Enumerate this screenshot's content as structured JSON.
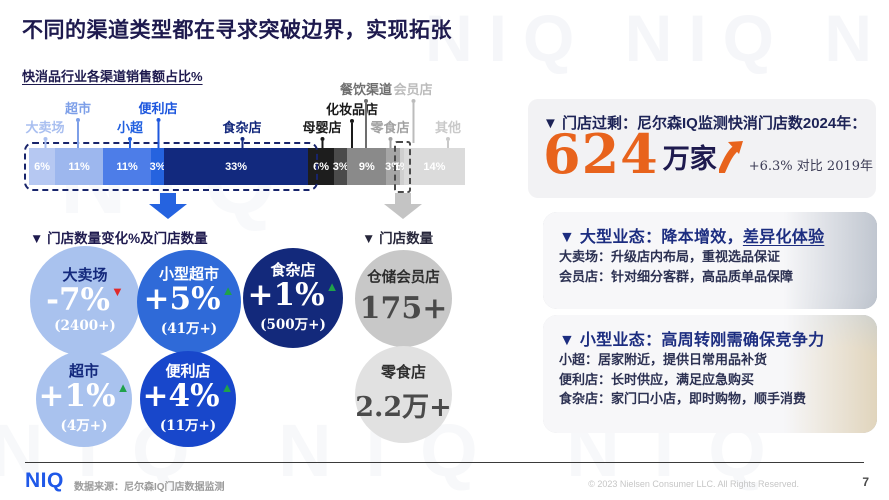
{
  "header": {
    "title": "不同的渠道类型都在寻求突破边界，实现拓张",
    "subtitle": "快消品行业各渠道销售额占比%"
  },
  "watermark": {
    "top": "NIQ NIQ NIQ",
    "mid": "NIQ",
    "bottom": "NIQ NIQ NIQ"
  },
  "chart_data": [
    {
      "type": "bar",
      "subtype": "horizontal-stacked",
      "title": "快消品行业各渠道销售额占比%",
      "unit": "%",
      "categories": [
        "大卖场",
        "超市",
        "小超",
        "便利店",
        "食杂店",
        "母婴店",
        "化妆品店",
        "餐饮渠道",
        "零食店",
        "会员店",
        "其他"
      ],
      "values": [
        6,
        11,
        11,
        3,
        33,
        6,
        3,
        9,
        3,
        1,
        14
      ],
      "colors": [
        "#b6c8f2",
        "#9db7ee",
        "#4d7de8",
        "#2563df",
        "#12297e",
        "#1d1d1d",
        "#4b4b4b",
        "#8a8a8a",
        "#a6a6a6",
        "#cfcfcf",
        "#dbdbdb"
      ],
      "label_colors": [
        "#a9bff0",
        "#7d9fe8",
        "#2261e0",
        "#1e57de",
        "#13287c",
        "#1a1a1a",
        "#1a1a1a",
        "#6e6e6e",
        "#a2a2a2",
        "#bcbcbc",
        "#c9c9c9"
      ],
      "highlight_group_outline": "大卖场至食杂店蓝色虚线框",
      "highlight_segment_outline": "会员店虚线框",
      "legend_position": "above-bar",
      "grid": false
    },
    {
      "type": "bubble",
      "title": "▼ 门店数量变化%及门店数量",
      "items": [
        {
          "name": "大卖场",
          "change": "-7%",
          "arrow": "▼",
          "direction": "down",
          "count": "(2400+)",
          "color": "#a9c2ee"
        },
        {
          "name": "小型超市",
          "change": "+5%",
          "arrow": "▲",
          "direction": "up",
          "count": "(41万+)",
          "color": "#2f6ad8"
        },
        {
          "name": "食杂店",
          "change": "+1%",
          "arrow": "▲",
          "direction": "up",
          "count": "(500万+)",
          "color": "#13297b"
        },
        {
          "name": "超市",
          "change": "+1%",
          "arrow": "▲",
          "direction": "up",
          "count": "(4万+)",
          "color": "#a9c2ee"
        },
        {
          "name": "便利店",
          "change": "+4%",
          "arrow": "▲",
          "direction": "up",
          "count": "(11万+)",
          "color": "#1847cb"
        }
      ]
    },
    {
      "type": "bubble",
      "title": "▼ 门店数量",
      "items": [
        {
          "name": "仓储会员店",
          "count": "175+",
          "color": "#c8c8c8"
        },
        {
          "name": "零食店",
          "count": "2.2万+",
          "color": "#e1e1e1"
        }
      ]
    }
  ],
  "panel": {
    "stat": {
      "title": "▼ 门店过剩：尼尔森IQ监测快消门店数2024年：",
      "number": "624",
      "unit": "万家",
      "note": "+6.3% 对比 2019年",
      "number_color": "#e8631c"
    },
    "cards": [
      {
        "title": "▼ 大型业态：降本增效，",
        "title_underline": "差异化体验",
        "lines": [
          "大卖场：升级店内布局，重视选品保证",
          "会员店：针对细分客群，高品质单品保障"
        ]
      },
      {
        "title": "▼ 小型业态：高周转刚需确保竞争力",
        "title_underline": "",
        "lines": [
          "小超：居家附近，提供日常用品补货",
          "便利店：长时供应，满足应急购买",
          "食杂店：家门口小店，即时购物，顺手消费"
        ]
      }
    ]
  },
  "footer": {
    "logo": "NIQ",
    "source": "数据来源：尼尔森IQ门店数据监测",
    "copyright": "© 2023 Nielsen Consumer LLC.  All Rights Reserved.",
    "page": "7"
  },
  "colors": {
    "title_navy": "#1e1a4e",
    "accent_orange": "#e8631c",
    "logo_blue": "#1f58e8",
    "up_green": "#1fa24a",
    "down_red": "#e02a2a",
    "flow_arrow_blue": "#2563e0",
    "flow_arrow_gray": "#c4c4c4"
  }
}
